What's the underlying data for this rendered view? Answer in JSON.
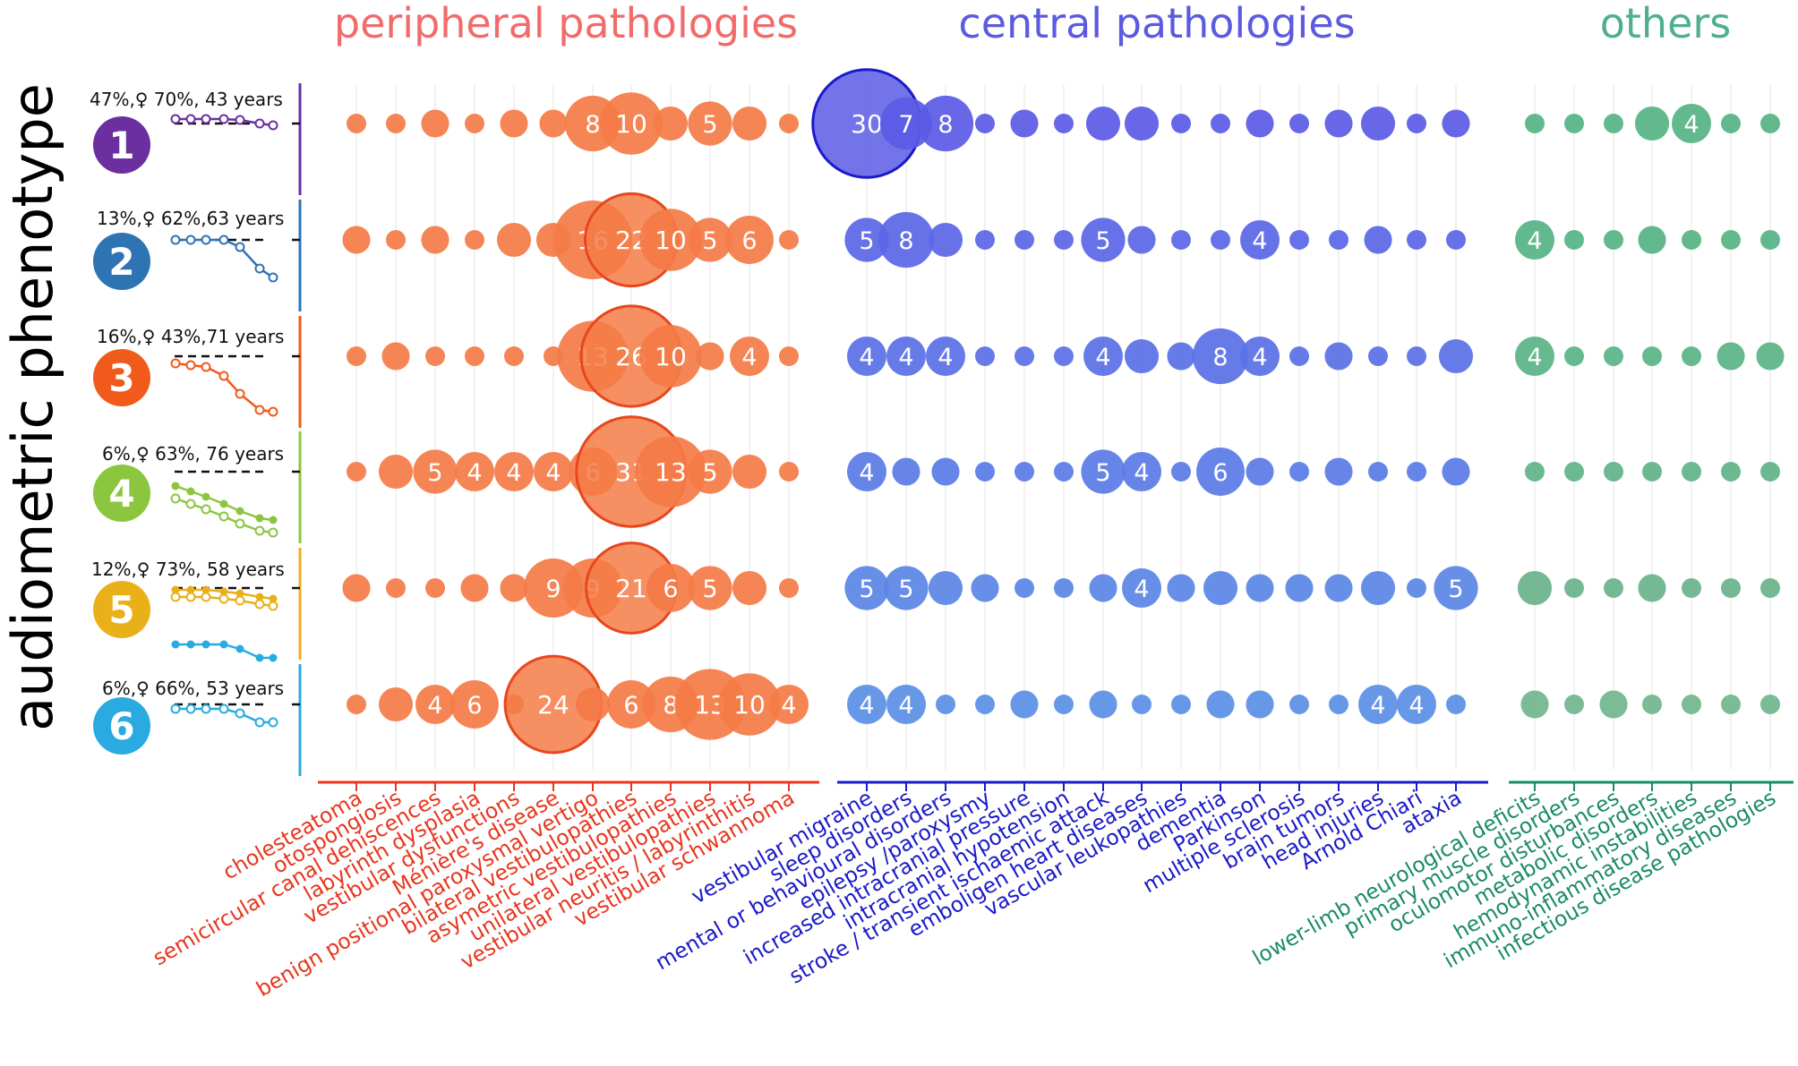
{
  "y_axis_label": "audiometric phenotype",
  "group_titles": [
    {
      "label": "peripheral pathologies",
      "color": "#f26b6b"
    },
    {
      "label": "central pathologies",
      "color": "#5b5be0"
    },
    {
      "label": "others",
      "color": "#4fb08c"
    }
  ],
  "phenotypes": [
    {
      "number": "1",
      "summary": "47%,♀ 70%, 43 years",
      "color": "#6b2fa0"
    },
    {
      "number": "2",
      "summary": "13%,♀ 62%,63 years",
      "color": "#2e74b5"
    },
    {
      "number": "3",
      "summary": "16%,♀ 43%,71 years",
      "color": "#f05a1a"
    },
    {
      "number": "4",
      "summary": "6%,♀ 63%, 76 years",
      "color": "#8cc63f"
    },
    {
      "number": "5",
      "summary": "12%,♀ 73%, 58 years",
      "color": "#e9b019"
    },
    {
      "number": "6",
      "summary": "6%,♀ 66%, 53 years",
      "color": "#29aae1"
    }
  ],
  "chart_data": {
    "type": "scatter",
    "encoding": "bubble size = number of patients; printed labels shown for larger bubbles",
    "rows": [
      "1",
      "2",
      "3",
      "4",
      "5",
      "6"
    ],
    "groups": [
      {
        "name": "peripheral pathologies",
        "color": "#e8361e",
        "categories": [
          "cholesteatoma",
          "otospongiosis",
          "semicircular canal dehiscences",
          "labyrinth dysplasia",
          "vestibular dysfunctions",
          "Ménière's disease",
          "benign positional paroxysmal vertigo",
          "bilateral vestibulopathies",
          "asymetric vestibulopathies",
          "unilateral vestibulopathies",
          "vestibular neuritis / labyrinthitis",
          "vestibular schwannoma"
        ]
      },
      {
        "name": "central pathologies",
        "color": "#1a1ac8",
        "categories": [
          "vestibular migraine",
          "sleep disorders",
          "mental or behavioural disorders",
          "epilepsy /paroxysmy",
          "increased intracranial pressure",
          "intracranial hypotension",
          "stroke / transient ischaemic attack",
          "emboligen heart diseases",
          "vascular leukopathies",
          "dementia",
          "Parkinson",
          "multiple sclerosis",
          "brain tumors",
          "head injuries",
          "Arnold Chiari",
          "ataxia"
        ]
      },
      {
        "name": "others",
        "color": "#1a8c64",
        "categories": [
          "lower-limb neurological deficits",
          "primary muscle disorders",
          "oculomotor disturbances",
          "metabolic disorders",
          "hemodynamic instabilities",
          "immuno-inflammatory diseases",
          "infectious disease pathologies"
        ]
      }
    ],
    "values": [
      [
        1,
        1,
        2,
        1,
        2,
        2,
        8,
        10,
        3,
        5,
        3,
        1,
        30,
        7,
        8,
        1,
        2,
        1,
        3,
        3,
        1,
        1,
        2,
        1,
        2,
        3,
        1,
        2,
        1,
        1,
        1,
        3,
        4,
        1,
        1
      ],
      [
        2,
        1,
        2,
        1,
        3,
        3,
        16,
        22,
        10,
        5,
        6,
        1,
        5,
        8,
        3,
        1,
        1,
        1,
        5,
        2,
        1,
        1,
        4,
        1,
        1,
        2,
        1,
        1,
        4,
        1,
        1,
        2,
        1,
        1,
        1
      ],
      [
        1,
        2,
        1,
        1,
        1,
        1,
        13,
        26,
        10,
        2,
        4,
        1,
        4,
        4,
        4,
        1,
        1,
        1,
        4,
        3,
        2,
        8,
        4,
        1,
        2,
        1,
        1,
        3,
        4,
        1,
        1,
        1,
        1,
        2,
        2
      ],
      [
        1,
        3,
        5,
        4,
        4,
        4,
        6,
        31,
        13,
        5,
        3,
        1,
        4,
        2,
        2,
        1,
        1,
        1,
        5,
        4,
        1,
        6,
        2,
        1,
        2,
        1,
        1,
        2,
        1,
        1,
        1,
        1,
        1,
        1,
        1
      ],
      [
        2,
        1,
        1,
        2,
        2,
        9,
        9,
        21,
        6,
        5,
        3,
        1,
        5,
        5,
        3,
        2,
        1,
        1,
        2,
        4,
        2,
        3,
        2,
        2,
        2,
        3,
        1,
        5,
        3,
        1,
        1,
        2,
        1,
        1,
        1
      ],
      [
        1,
        3,
        4,
        6,
        1,
        24,
        3,
        6,
        8,
        13,
        10,
        4,
        4,
        4,
        1,
        1,
        2,
        1,
        2,
        1,
        1,
        2,
        2,
        1,
        1,
        4,
        4,
        1,
        2,
        1,
        2,
        1,
        1,
        1,
        1
      ]
    ]
  }
}
